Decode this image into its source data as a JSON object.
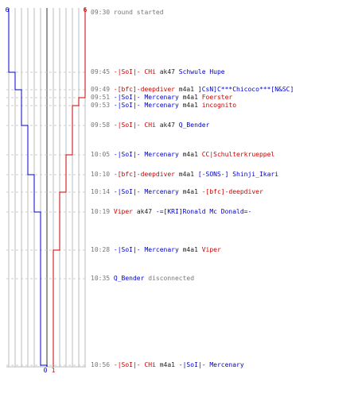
{
  "teams": {
    "blue": {
      "color": "#0000cc",
      "start": "6",
      "end": "0"
    },
    "red": {
      "color": "#cc0000",
      "start": "6",
      "end": "1"
    }
  },
  "colors": {
    "gridline": "#bbbbbb",
    "center": "#777777",
    "dashed": "#cccccc"
  },
  "events": [
    {
      "time": "09:30",
      "alive_blue": 6,
      "alive_red": 6,
      "parts": [
        {
          "text": "round started",
          "tone": "grey"
        }
      ]
    },
    {
      "time": "09:45",
      "alive_blue": 5,
      "alive_red": 6,
      "parts": [
        {
          "text": "-|SoI|- CHi",
          "tone": "red"
        },
        {
          "text": " ak47 ",
          "tone": "black"
        },
        {
          "text": "Schwule Hupe",
          "tone": "blue"
        }
      ]
    },
    {
      "time": "09:49",
      "alive_blue": 4,
      "alive_red": 6,
      "parts": [
        {
          "text": "-[bfc]-deepdiver",
          "tone": "red"
        },
        {
          "text": " m4a1 ",
          "tone": "black"
        },
        {
          "text": "]CsN]C***Chicoco***[N&SC]",
          "tone": "blue"
        }
      ]
    },
    {
      "time": "09:51",
      "alive_blue": 4,
      "alive_red": 5,
      "parts": [
        {
          "text": "-|SoI|- Mercenary",
          "tone": "blue"
        },
        {
          "text": " m4a1 ",
          "tone": "black"
        },
        {
          "text": "Foerster",
          "tone": "red"
        }
      ]
    },
    {
      "time": "09:53",
      "alive_blue": 4,
      "alive_red": 4,
      "parts": [
        {
          "text": "-|SoI|- Mercenary",
          "tone": "blue"
        },
        {
          "text": " m4a1 ",
          "tone": "black"
        },
        {
          "text": "incognito",
          "tone": "red"
        }
      ]
    },
    {
      "time": "09:58",
      "alive_blue": 3,
      "alive_red": 4,
      "parts": [
        {
          "text": "-|SoI|- CHi",
          "tone": "red"
        },
        {
          "text": " ak47 ",
          "tone": "black"
        },
        {
          "text": "Q_Bender",
          "tone": "blue"
        }
      ]
    },
    {
      "time": "10:05",
      "alive_blue": 3,
      "alive_red": 3,
      "parts": [
        {
          "text": "-|SoI|- Mercenary",
          "tone": "blue"
        },
        {
          "text": " m4a1 ",
          "tone": "black"
        },
        {
          "text": "CC|Schulterkrueppel",
          "tone": "red"
        }
      ]
    },
    {
      "time": "10:10",
      "alive_blue": 2,
      "alive_red": 3,
      "parts": [
        {
          "text": "-[bfc]-deepdiver",
          "tone": "red"
        },
        {
          "text": " m4a1 ",
          "tone": "black"
        },
        {
          "text": "[-SONS-] Shinji_Ikari",
          "tone": "blue"
        }
      ]
    },
    {
      "time": "10:14",
      "alive_blue": 2,
      "alive_red": 2,
      "parts": [
        {
          "text": "-|SoI|- Mercenary",
          "tone": "blue"
        },
        {
          "text": " m4a1 ",
          "tone": "black"
        },
        {
          "text": "-[bfc]-deepdiver",
          "tone": "red"
        }
      ]
    },
    {
      "time": "10:19",
      "alive_blue": 1,
      "alive_red": 2,
      "parts": [
        {
          "text": "Viper",
          "tone": "red"
        },
        {
          "text": " ak47 ",
          "tone": "black"
        },
        {
          "text": "-=[KRI]Ronald Mc Donald=-",
          "tone": "blue"
        }
      ]
    },
    {
      "time": "10:28",
      "alive_blue": 1,
      "alive_red": 1,
      "parts": [
        {
          "text": "-|SoI|- Mercenary",
          "tone": "blue"
        },
        {
          "text": " m4a1 ",
          "tone": "black"
        },
        {
          "text": "Viper",
          "tone": "red"
        }
      ]
    },
    {
      "time": "10:35",
      "alive_blue": 1,
      "alive_red": 1,
      "parts": [
        {
          "text": "Q_Bender",
          "tone": "blue"
        },
        {
          "text": " disconnected",
          "tone": "grey"
        }
      ]
    },
    {
      "time": "10:56",
      "alive_blue": 0,
      "alive_red": 1,
      "parts": [
        {
          "text": "-|SoI|- CHi",
          "tone": "red"
        },
        {
          "text": " m4a1 ",
          "tone": "black"
        },
        {
          "text": "-|SoI|- Mercenary",
          "tone": "blue"
        }
      ]
    }
  ]
}
